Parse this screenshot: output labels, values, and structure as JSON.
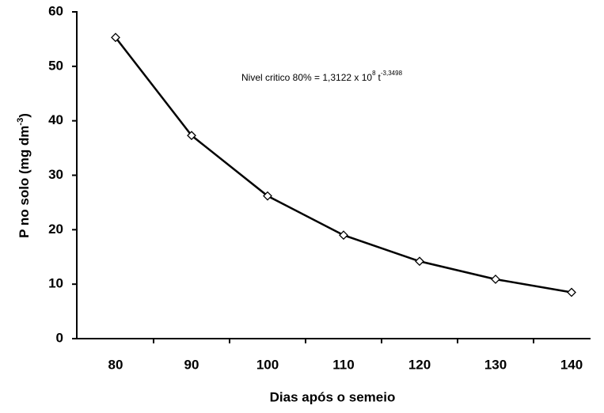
{
  "chart_data": {
    "type": "line",
    "xlabel": "Dias após o semeio",
    "ylabel": [
      "P no solo (mg dm",
      "-3",
      ")"
    ],
    "annotation": [
      "Nivel critico 80% = 1,3122 x 10",
      "8",
      "t",
      "-3,3498"
    ],
    "categories": [
      "80",
      "90",
      "100",
      "110",
      "120",
      "130",
      "140"
    ],
    "series": [
      {
        "color": "#000000",
        "values": [
          55.3,
          37.3,
          26.2,
          19.0,
          14.2,
          10.9,
          8.5
        ]
      }
    ],
    "ylim": [
      0,
      60
    ],
    "yticks": [
      0,
      10,
      20,
      30,
      40,
      50,
      60
    ],
    "grid": false
  }
}
